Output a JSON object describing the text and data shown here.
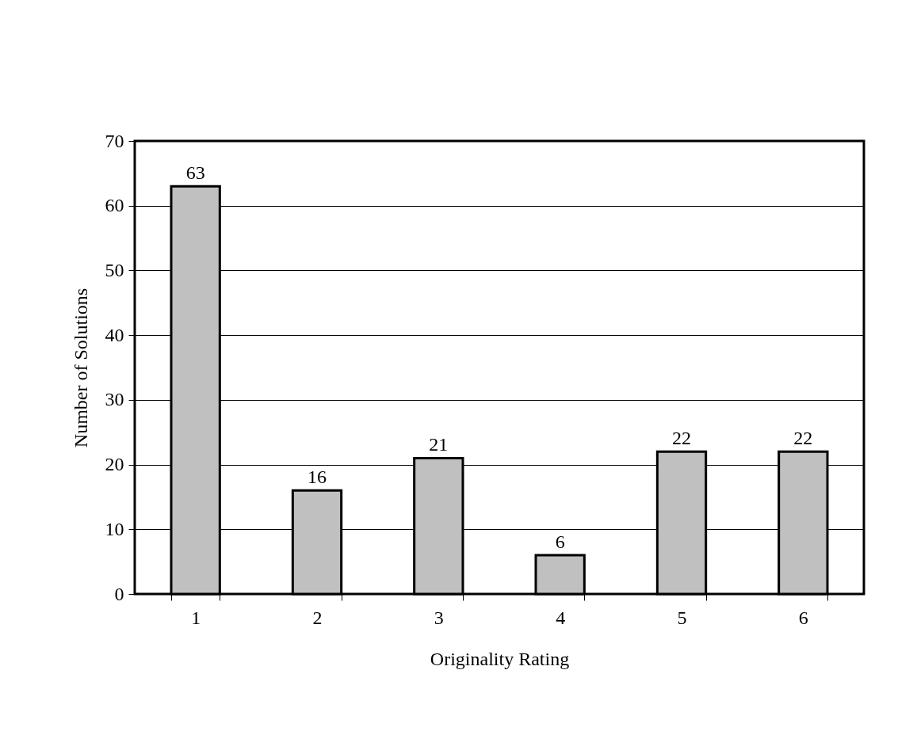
{
  "chart_data": {
    "type": "bar",
    "xlabel": "Originality Rating",
    "ylabel": "Number of Solutions",
    "categories": [
      "1",
      "2",
      "3",
      "4",
      "5",
      "6"
    ],
    "values": [
      63,
      16,
      21,
      6,
      22,
      22
    ],
    "color": "#c0c0c0",
    "ylim": [
      0,
      70
    ],
    "yticks": [
      0,
      10,
      20,
      30,
      40,
      50,
      60,
      70
    ],
    "grid": "y",
    "data_labels": true
  }
}
